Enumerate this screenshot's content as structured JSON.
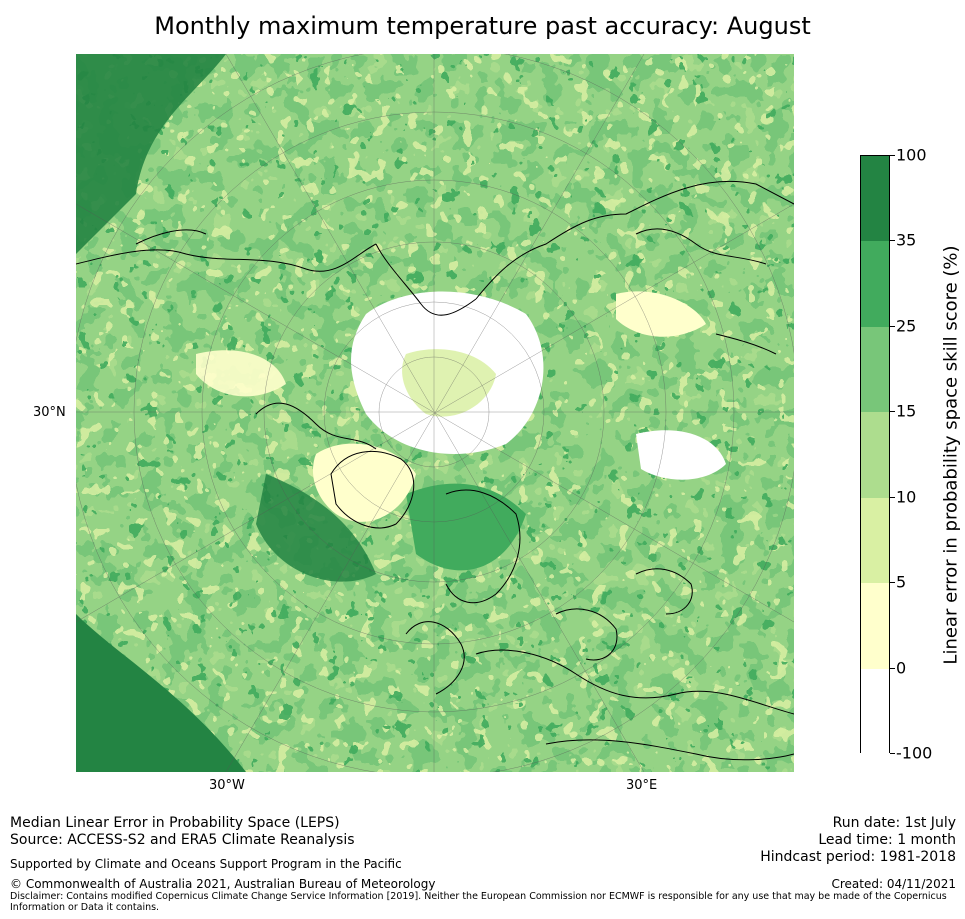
{
  "title": "Monthly maximum temperature past accuracy: August",
  "map": {
    "lat_label": "30°N",
    "lon_labels": [
      "30°W",
      "30°E"
    ],
    "colors": {
      "ocean_dark": "#238443",
      "mid_green": "#41ab5d",
      "light_green": "#78c679",
      "pale_green": "#addd8e",
      "yellow_green": "#d9f0a3",
      "cream": "#ffffcc",
      "white": "#ffffff"
    }
  },
  "colorbar": {
    "title": "Linear error in probability space skill score (%)",
    "ticks": [
      "100",
      "35",
      "25",
      "15",
      "10",
      "5",
      "0",
      "-100"
    ],
    "colors": [
      "#238443",
      "#41ab5d",
      "#78c679",
      "#addd8e",
      "#d9f0a3",
      "#ffffcc",
      "#ffffff"
    ]
  },
  "footer": {
    "left_line1": "Median Linear Error in Probability Space (LEPS)",
    "left_line2": "Source: ACCESS-S2 and ERA5 Climate Reanalysis",
    "support": "Supported by Climate and Oceans Support Program in the Pacific",
    "copyright": "© Commonwealth of Australia 2021, Australian Bureau of Meteorology",
    "disclaimer": "Disclaimer: Contains modified Copernicus Climate Change Service Information [2019]. Neither the European Commission nor ECMWF is responsible for any use that may be made of the Copernicus Information or Data it contains.",
    "run_date": "Run date: 1st July",
    "lead_time": "Lead time: 1 month",
    "hindcast": "Hindcast period: 1981-2018",
    "created": "Created: 04/11/2021"
  }
}
